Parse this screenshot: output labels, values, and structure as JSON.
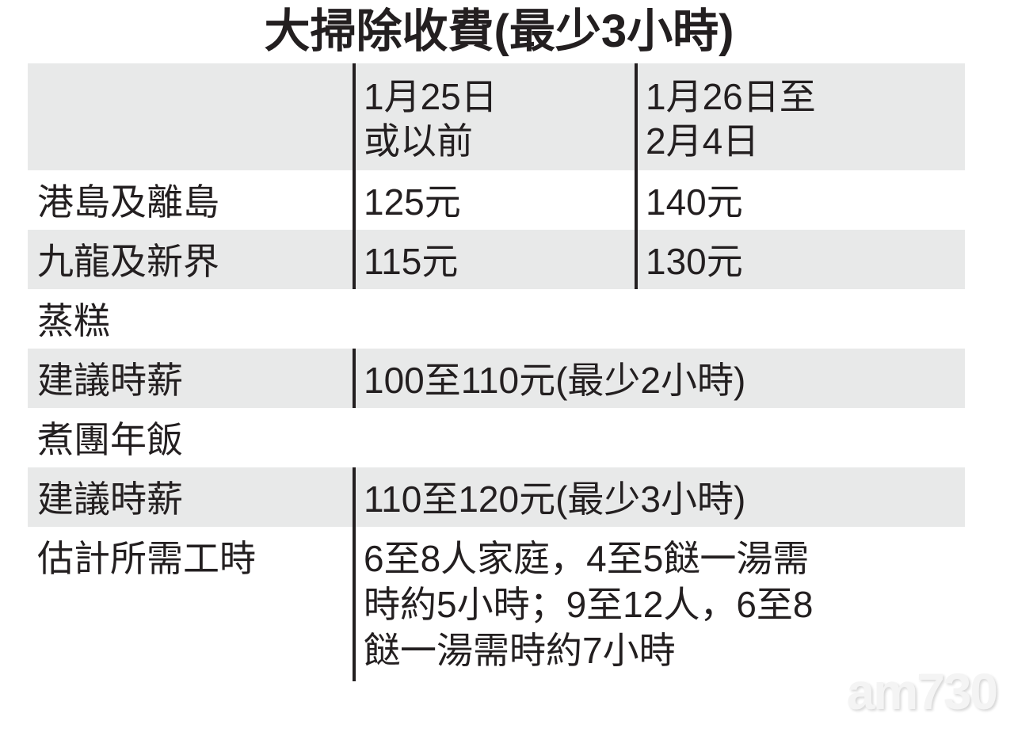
{
  "title": "大掃除收費(最少3小時)",
  "cleaning": {
    "headers": [
      "",
      "1月25日\n或以前",
      "1月26日至\n2月4日"
    ],
    "header_col1_lines": [
      "1月25日",
      "或以前"
    ],
    "header_col2_lines": [
      "1月26日至",
      "2月4日"
    ],
    "rows": [
      {
        "region": "港島及離島",
        "before": "125元",
        "after": "140元"
      },
      {
        "region": "九龍及新界",
        "before": "115元",
        "after": "130元"
      }
    ]
  },
  "steamed_cake": {
    "heading": "蒸糕",
    "label": "建議時薪",
    "value": "100至110元(最少2小時)"
  },
  "reunion_dinner": {
    "heading": "煮團年飯",
    "label": "建議時薪",
    "value": "110至120元(最少3小時)",
    "hours_label": "估計所需工時",
    "hours_lines": [
      "6至8人家庭，4至5餸一湯需",
      "時約5小時；9至12人，6至8",
      "餸一湯需時約7小時"
    ]
  },
  "colors": {
    "band": "#e8e9e9",
    "text": "#231f20"
  },
  "watermark": "am730"
}
